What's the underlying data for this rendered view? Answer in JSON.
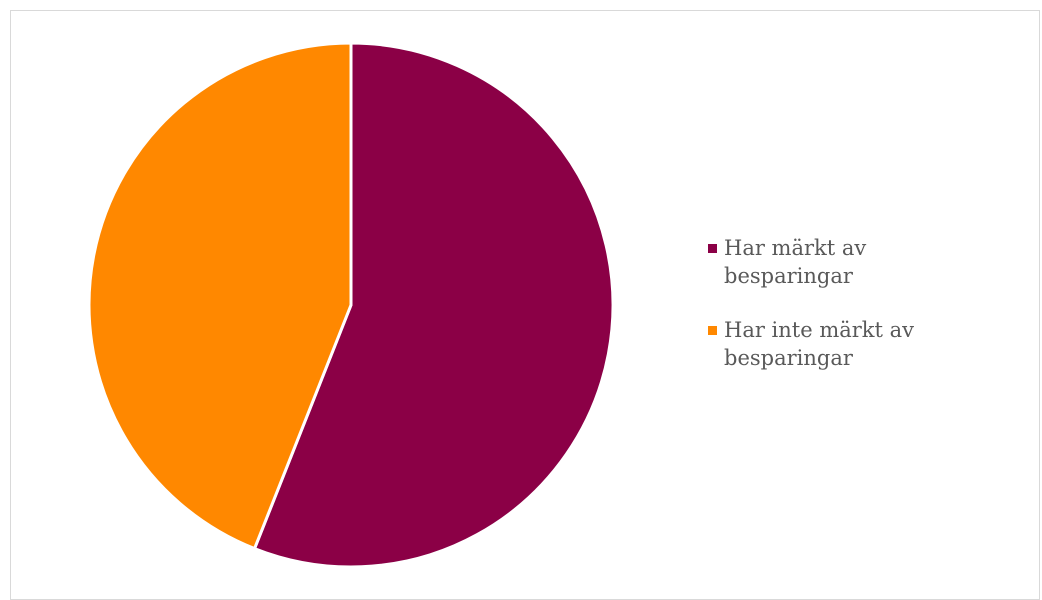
{
  "chart_data": {
    "type": "pie",
    "title": "",
    "categories": [
      "Har märkt av besparingar",
      "Har inte märkt av besparingar"
    ],
    "values": [
      56,
      44
    ],
    "colors": [
      "#8b0046",
      "#ff8800"
    ],
    "start_angle_deg": 0,
    "direction": "clockwise",
    "slice_separator_color": "#ffffff",
    "legend_position": "right"
  },
  "legend": {
    "items": [
      {
        "label": "Har märkt av besparingar",
        "color": "#8b0046"
      },
      {
        "label": "Har inte märkt av besparingar",
        "color": "#ff8800"
      }
    ]
  }
}
